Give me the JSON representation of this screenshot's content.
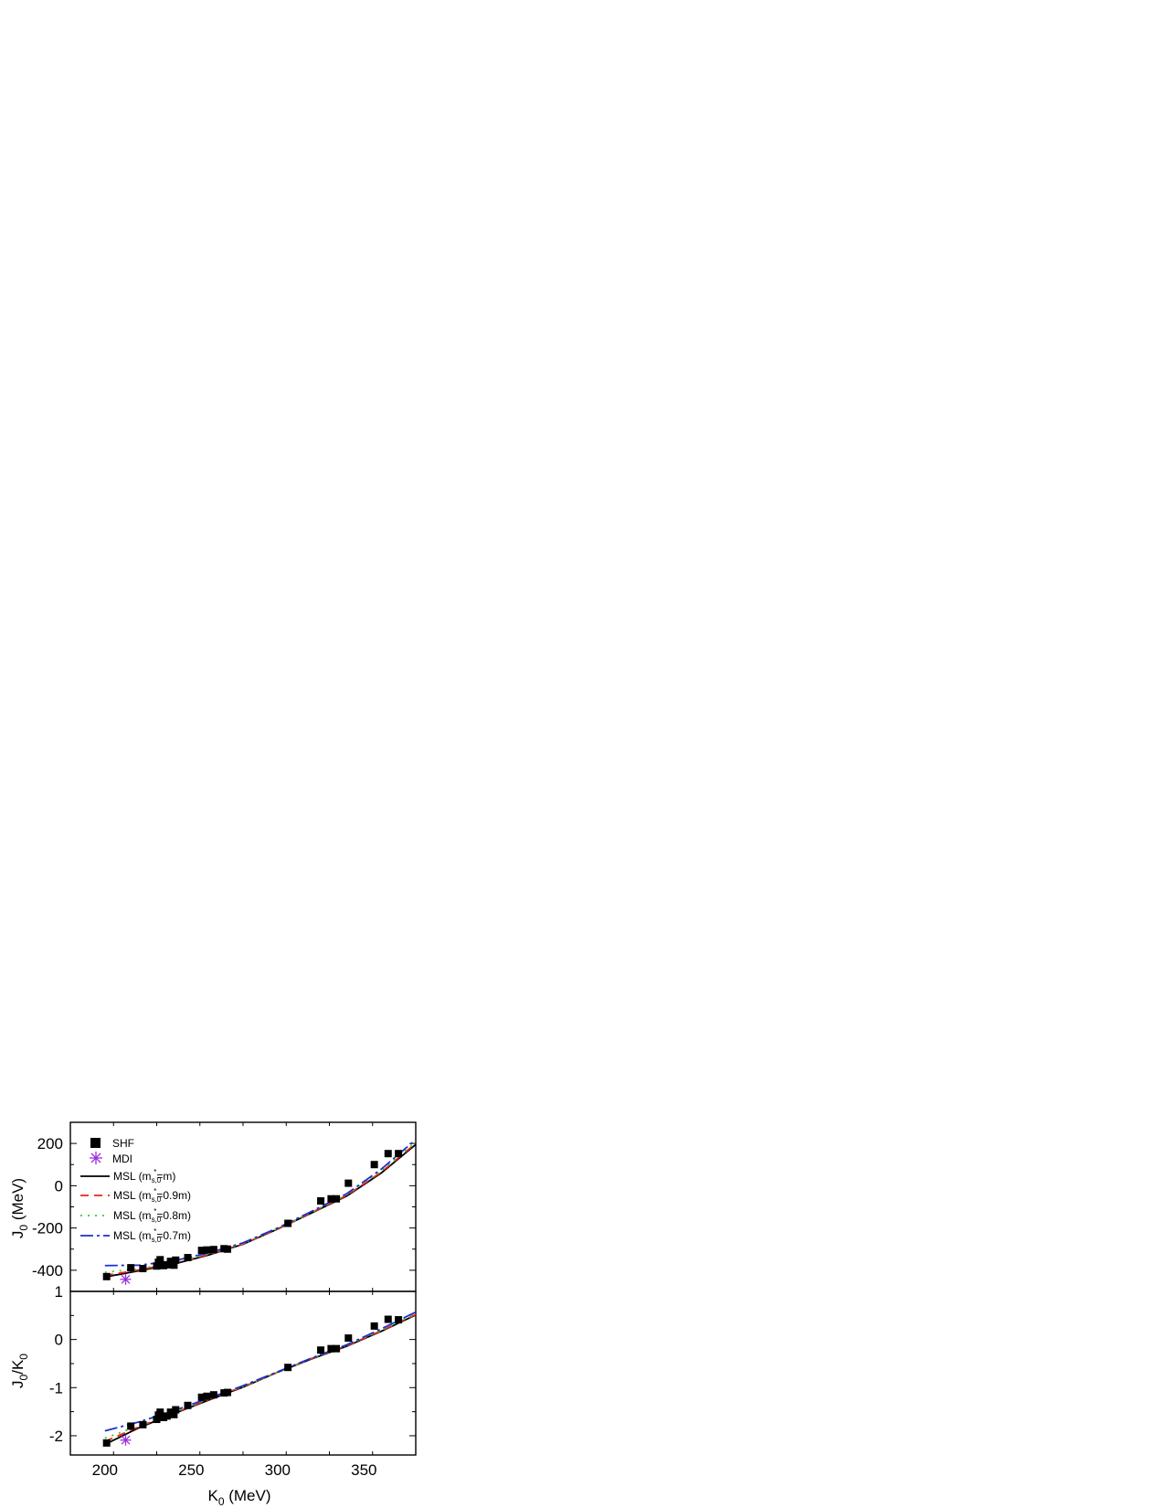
{
  "chart_data": [
    {
      "type": "scatter",
      "panel": "top",
      "ylabel_main": "J",
      "ylabel_sub": "0",
      "ylabel_unit": " (MeV)",
      "xlim": [
        180,
        380
      ],
      "ylim": [
        -500,
        300
      ],
      "yticks": [
        -400,
        -200,
        0,
        200
      ],
      "ytick_labels": [
        "-400",
        "-200",
        "0",
        "200"
      ],
      "legend": {
        "placement": "top-left",
        "shf": "SHF",
        "mdi": "MDI",
        "msl_prefix": "MSL (m",
        "msl_sub": "s,0",
        "msl_sup": "*",
        "entries": [
          "=m)",
          "=0.9m)",
          "=0.8m)",
          "=0.7m)"
        ]
      },
      "series": [
        {
          "name": "SHF",
          "kind": "points",
          "color": "#000000",
          "x": [
            201,
            215,
            222,
            230,
            231,
            232,
            234,
            236,
            238,
            240,
            241,
            248,
            256,
            259,
            263,
            269,
            271,
            306,
            325,
            331,
            334,
            341,
            356,
            364,
            370
          ],
          "y": [
            -430,
            -388,
            -392,
            -380,
            -362,
            -350,
            -378,
            -374,
            -358,
            -376,
            -352,
            -340,
            -306,
            -304,
            -302,
            -298,
            -300,
            -178,
            -72,
            -62,
            -62,
            12,
            100,
            152,
            152
          ]
        },
        {
          "name": "MDI",
          "kind": "points",
          "color": "#9b30d9",
          "x": [
            212
          ],
          "y": [
            -443
          ]
        },
        {
          "name": "MSL (m=m)",
          "kind": "line",
          "color": "#000000",
          "dash": "",
          "x": [
            200,
            220,
            240,
            260,
            280,
            300,
            320,
            340,
            360,
            380
          ],
          "y": [
            -432,
            -402,
            -370,
            -328,
            -277,
            -205,
            -128,
            -49,
            60,
            195
          ]
        },
        {
          "name": "MSL (m=0.9m)",
          "kind": "line",
          "color": "#e8231c",
          "dash": "9,6",
          "x": [
            200,
            220,
            240,
            260,
            280,
            300,
            320,
            340,
            360,
            380
          ],
          "y": [
            -425,
            -398,
            -367,
            -326,
            -276,
            -204,
            -126,
            -46,
            64,
            200
          ]
        },
        {
          "name": "MSL (m=0.8m)",
          "kind": "line",
          "color": "#33cc33",
          "dash": "2,6",
          "x": [
            200,
            220,
            240,
            260,
            280,
            300,
            320,
            340,
            360,
            380
          ],
          "y": [
            -410,
            -393,
            -363,
            -323,
            -274,
            -203,
            -124,
            -43,
            70,
            207
          ]
        },
        {
          "name": "MSL (m=0.7m)",
          "kind": "line",
          "color": "#1f2fd0",
          "dash": "14,4,3,4",
          "x": [
            200,
            220,
            240,
            260,
            280,
            300,
            320,
            340,
            360,
            380
          ],
          "y": [
            -378,
            -376,
            -355,
            -318,
            -270,
            -200,
            -120,
            -38,
            78,
            218
          ]
        }
      ]
    },
    {
      "type": "scatter",
      "panel": "bottom",
      "ylabel_parts": [
        "J",
        "0",
        "/K",
        "0"
      ],
      "xlabel_main": "K",
      "xlabel_sub": "0",
      "xlabel_unit": " (MeV)",
      "xlim": [
        180,
        380
      ],
      "ylim": [
        -2.4,
        1.0
      ],
      "xticks": [
        200,
        250,
        300,
        350
      ],
      "xtick_labels": [
        "200",
        "250",
        "300",
        "350"
      ],
      "yticks": [
        -2,
        -1,
        0,
        1
      ],
      "ytick_labels": [
        "-2",
        "-1",
        "0",
        "1"
      ],
      "series": [
        {
          "name": "SHF",
          "kind": "points",
          "color": "#000000",
          "x": [
            201,
            215,
            222,
            230,
            231,
            232,
            234,
            236,
            238,
            240,
            241,
            248,
            256,
            259,
            263,
            269,
            271,
            306,
            325,
            331,
            334,
            341,
            356,
            364,
            370
          ],
          "y": [
            -2.15,
            -1.8,
            -1.77,
            -1.66,
            -1.57,
            -1.51,
            -1.62,
            -1.59,
            -1.51,
            -1.56,
            -1.46,
            -1.37,
            -1.2,
            -1.18,
            -1.15,
            -1.11,
            -1.1,
            -0.58,
            -0.22,
            -0.19,
            -0.19,
            0.03,
            0.28,
            0.42,
            0.41
          ]
        },
        {
          "name": "MDI",
          "kind": "points",
          "color": "#9b30d9",
          "x": [
            212
          ],
          "y": [
            -2.09
          ]
        },
        {
          "name": "MSL (m=m)",
          "kind": "line",
          "color": "#000000",
          "dash": "",
          "x": [
            200,
            220,
            240,
            260,
            280,
            300,
            320,
            340,
            360,
            380
          ],
          "y": [
            -2.18,
            -1.83,
            -1.54,
            -1.26,
            -0.99,
            -0.68,
            -0.4,
            -0.14,
            0.17,
            0.51
          ]
        },
        {
          "name": "MSL (m=0.9m)",
          "kind": "line",
          "color": "#e8231c",
          "dash": "9,6",
          "x": [
            200,
            220,
            240,
            260,
            280,
            300,
            320,
            340,
            360,
            380
          ],
          "y": [
            -2.12,
            -1.81,
            -1.53,
            -1.25,
            -0.98,
            -0.68,
            -0.39,
            -0.13,
            0.18,
            0.52
          ]
        },
        {
          "name": "MSL (m=0.8m)",
          "kind": "line",
          "color": "#33cc33",
          "dash": "2,6",
          "x": [
            200,
            220,
            240,
            260,
            280,
            300,
            320,
            340,
            360,
            380
          ],
          "y": [
            -2.05,
            -1.79,
            -1.51,
            -1.24,
            -0.98,
            -0.68,
            -0.39,
            -0.12,
            0.19,
            0.54
          ]
        },
        {
          "name": "MSL (m=0.7m)",
          "kind": "line",
          "color": "#1f2fd0",
          "dash": "14,4,3,4",
          "x": [
            200,
            220,
            240,
            260,
            280,
            300,
            320,
            340,
            360,
            380
          ],
          "y": [
            -1.9,
            -1.71,
            -1.48,
            -1.22,
            -0.96,
            -0.67,
            -0.38,
            -0.11,
            0.22,
            0.57
          ]
        }
      ]
    }
  ]
}
